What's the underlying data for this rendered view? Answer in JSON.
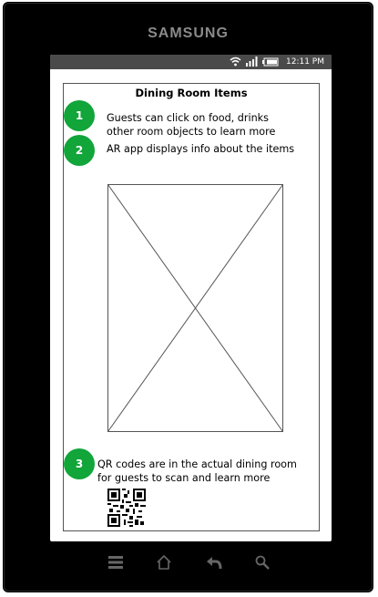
{
  "device": {
    "brand": "SAMSUNG",
    "status_bar": {
      "time": "12:11 PM",
      "icons": [
        "wifi-icon",
        "signal-icon",
        "battery-icon"
      ]
    },
    "nav_keys": [
      "menu-icon",
      "home-icon",
      "back-icon",
      "search-icon"
    ]
  },
  "screen": {
    "title": "Dining Room Items",
    "steps": [
      {
        "number": "1",
        "line1": "Guests can click on food, drinks",
        "line2": "other room objects to learn more"
      },
      {
        "number": "2",
        "line1": "AR app displays info about the items",
        "line2": ""
      },
      {
        "number": "3",
        "line1": "QR codes are in the actual dining room",
        "line2": "for guests to scan and learn more"
      }
    ],
    "image_placeholder": "image-placeholder",
    "qr_code": "qr-code"
  },
  "colors": {
    "badge": "#11a53a",
    "device_body": "#000000",
    "status_bar": "#4a4a4a"
  }
}
